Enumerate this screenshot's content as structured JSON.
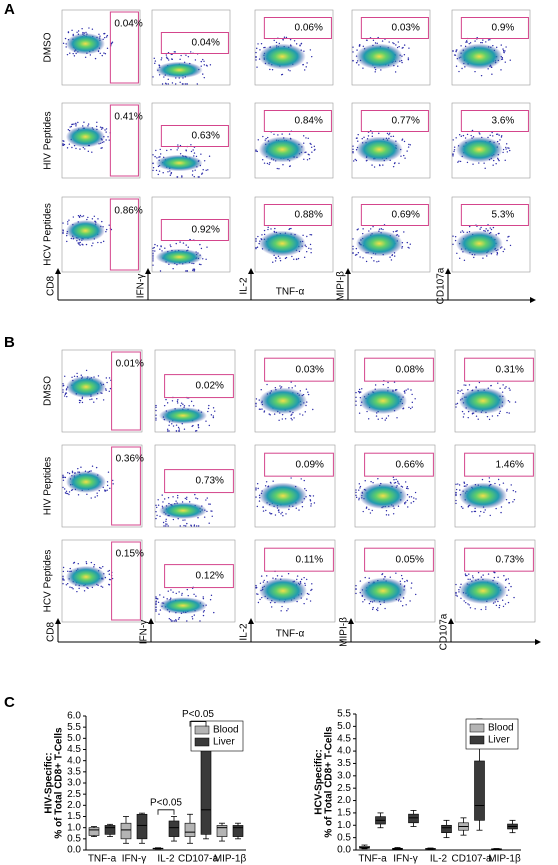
{
  "panel_a": {
    "label": "A",
    "rows": [
      "DMSO",
      "HIV Peptides",
      "HCV Peptides"
    ],
    "gates": [
      [
        "0.04%",
        "0.04%",
        "0.06%",
        "0.03%",
        "0.9%"
      ],
      [
        "0.41%",
        "0.63%",
        "0.84%",
        "0.77%",
        "3.6%"
      ],
      [
        "0.86%",
        "0.92%",
        "0.88%",
        "0.69%",
        "5.3%"
      ]
    ],
    "y_markers": [
      "CD8",
      "IFN-γ",
      "IL-2",
      "MIPI-β",
      "CD107a"
    ],
    "x_marker": "TNF-α"
  },
  "panel_b": {
    "label": "B",
    "rows": [
      "DMSO",
      "HIV Peptides",
      "HCV Peptides"
    ],
    "gates": [
      [
        "0.01%",
        "0.02%",
        "0.03%",
        "0.08%",
        "0.31%"
      ],
      [
        "0.36%",
        "0.73%",
        "0.09%",
        "0.66%",
        "1.46%"
      ],
      [
        "0.15%",
        "0.12%",
        "0.11%",
        "0.05%",
        "0.73%"
      ]
    ],
    "y_markers": [
      "CD8",
      "IFN-γ",
      "IL-2",
      "MIPI-β",
      "CD107a"
    ],
    "x_marker": "TNF-α"
  },
  "panel_c": {
    "label": "C"
  },
  "chart_data": [
    {
      "type": "box",
      "ylabel": [
        "HIV-Specific:",
        "% of Total CD8+ T-Cells"
      ],
      "categories": [
        "TNF-a",
        "IFN-γ",
        "IL-2",
        "CD107-a",
        "MIP-1β"
      ],
      "series": [
        {
          "name": "Blood",
          "color": "#b4b4b4",
          "values": [
            [
              0.6,
              0.65,
              0.9,
              1.0,
              1.05
            ],
            [
              0.3,
              0.5,
              0.9,
              1.2,
              1.5
            ],
            [
              0.05,
              0.05,
              0.07,
              0.08,
              0.1
            ],
            [
              0.3,
              0.6,
              0.8,
              1.2,
              1.6
            ],
            [
              0.4,
              0.6,
              1.0,
              1.1,
              1.2
            ]
          ]
        },
        {
          "name": "Liver",
          "color": "#3a3a3a",
          "values": [
            [
              0.6,
              0.7,
              1.0,
              1.1,
              1.15
            ],
            [
              0.3,
              0.5,
              1.1,
              1.6,
              1.65
            ],
            [
              0.4,
              0.6,
              1.0,
              1.3,
              1.5
            ],
            [
              0.5,
              0.7,
              1.8,
              4.8,
              5.5
            ],
            [
              0.5,
              0.6,
              1.0,
              1.1,
              1.2
            ]
          ]
        }
      ],
      "annotations": [
        "P<0.05",
        "P<0.05"
      ],
      "ylim": [
        0,
        6
      ],
      "yticks": [
        {
          "value": 0,
          "label": "0.0"
        },
        {
          "value": 0.5,
          "label": "0.5"
        },
        {
          "value": 1,
          "label": "1.0"
        },
        {
          "value": 1.5,
          "label": "1.5"
        },
        {
          "value": 2,
          "label": "2.0"
        },
        {
          "value": 2.5,
          "label": "2.5"
        },
        {
          "value": 3,
          "label": "3.0"
        },
        {
          "value": 3.5,
          "label": "3.5"
        },
        {
          "value": 4,
          "label": "4.0"
        },
        {
          "value": 4.5,
          "label": "4.5"
        },
        {
          "value": 5,
          "label": "5.0"
        },
        {
          "value": 5.5,
          "label": "5.5"
        },
        {
          "value": 6,
          "label": "6.0"
        }
      ]
    },
    {
      "type": "box",
      "ylabel": [
        "HCV-Specific:",
        "% of Total CD8+ T-Cells"
      ],
      "categories": [
        "TNF-a",
        "IFN-γ",
        "IL-2",
        "CD107-a",
        "MIP-1β"
      ],
      "series": [
        {
          "name": "Blood",
          "color": "#b4b4b4",
          "values": [
            [
              0.05,
              0.07,
              0.1,
              0.15,
              0.2
            ],
            [
              0.02,
              0.03,
              0.05,
              0.07,
              0.1
            ],
            [
              0.03,
              0.04,
              0.05,
              0.06,
              0.08
            ],
            [
              0.6,
              0.8,
              0.95,
              1.1,
              1.3
            ],
            [
              0.02,
              0.03,
              0.04,
              0.05,
              0.06
            ]
          ]
        },
        {
          "name": "Liver",
          "color": "#3a3a3a",
          "values": [
            [
              0.9,
              1.05,
              1.2,
              1.35,
              1.5
            ],
            [
              0.95,
              1.1,
              1.3,
              1.45,
              1.6
            ],
            [
              0.5,
              0.7,
              0.9,
              1.0,
              1.2
            ],
            [
              0.8,
              1.2,
              1.8,
              3.6,
              5.3
            ],
            [
              0.7,
              0.85,
              0.95,
              1.05,
              1.2
            ]
          ]
        }
      ],
      "ylim": [
        0,
        5.5
      ],
      "yticks": [
        {
          "value": 0,
          "label": "0.0"
        },
        {
          "value": 0.5,
          "label": "0.5"
        },
        {
          "value": 1,
          "label": "1.0"
        },
        {
          "value": 1.5,
          "label": "1.5"
        },
        {
          "value": 2,
          "label": "2.0"
        },
        {
          "value": 2.5,
          "label": "2.5"
        },
        {
          "value": 3,
          "label": "3.0"
        },
        {
          "value": 3.5,
          "label": "3.5"
        },
        {
          "value": 4,
          "label": "4.0"
        },
        {
          "value": 4.5,
          "label": "4.5"
        },
        {
          "value": 5,
          "label": "5.0"
        },
        {
          "value": 5.5,
          "label": "5.5"
        }
      ]
    }
  ]
}
